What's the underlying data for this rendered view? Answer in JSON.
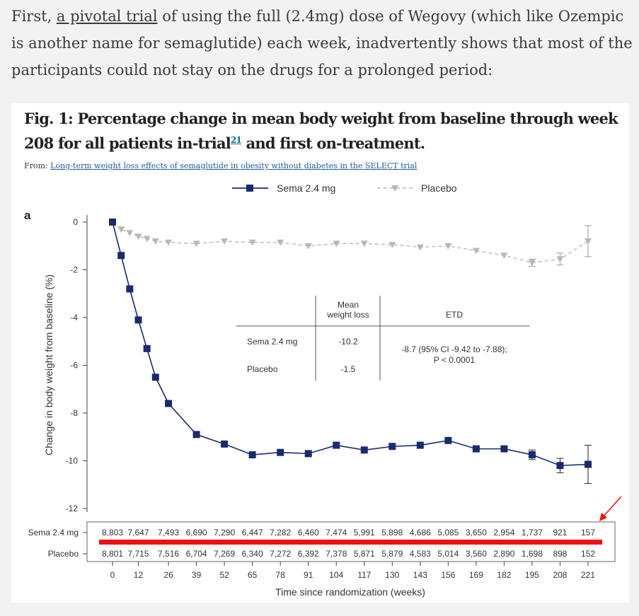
{
  "intro": {
    "prefix": "First, ",
    "link_text": "a pivotal trial",
    "suffix": " of using the full (2.4mg) dose of Wegovy (which like Ozempic is another name for semaglutide) each week, inadvertently shows that most of the participants could not stay on the drugs for a prolonged period:"
  },
  "figure": {
    "title_part1": "Fig. 1: Percentage change in mean body weight from baseline through week 208 for all patients in-trial",
    "ref_number": "21",
    "title_part2": " and first on-treatment.",
    "from_label": "From: ",
    "from_link": "Long-term weight loss effects of semaglutide in obesity without diabetes in the SELECT trial",
    "panel_label": "a"
  },
  "chart_data": {
    "type": "line",
    "ylabel": "Change in body weight from baseline (%)",
    "xlabel": "Time since randomization (weeks)",
    "ylim": [
      -12,
      0
    ],
    "yticks": [
      0,
      -2,
      -4,
      -6,
      -8,
      -10,
      -12
    ],
    "x": [
      0,
      4,
      8,
      12,
      16,
      20,
      26,
      39,
      52,
      65,
      78,
      91,
      104,
      117,
      130,
      143,
      156,
      169,
      182,
      195,
      208,
      221
    ],
    "xticks": [
      0,
      12,
      26,
      39,
      52,
      65,
      78,
      91,
      104,
      117,
      130,
      143,
      156,
      169,
      182,
      195,
      208,
      221
    ],
    "legend_position": "top-center",
    "series": [
      {
        "name": "Sema 2.4 mg",
        "color": "#1a2a6c",
        "marker": "square",
        "values": [
          0,
          -1.4,
          -2.8,
          -4.1,
          -5.3,
          -6.5,
          -7.6,
          -8.9,
          -9.3,
          -9.75,
          -9.65,
          -9.7,
          -9.35,
          -9.55,
          -9.4,
          -9.35,
          -9.15,
          -9.5,
          -9.5,
          -9.75,
          -10.2,
          -10.15
        ],
        "error_bars": {
          "195": 0.2,
          "208": 0.3,
          "221": 0.8
        }
      },
      {
        "name": "Placebo",
        "color": "#b8b8b8",
        "marker": "triangle-down",
        "values": [
          0,
          -0.3,
          -0.45,
          -0.6,
          -0.7,
          -0.8,
          -0.85,
          -0.9,
          -0.8,
          -0.85,
          -0.85,
          -1.0,
          -0.9,
          -0.9,
          -0.95,
          -1.05,
          -1.0,
          -1.2,
          -1.4,
          -1.7,
          -1.55,
          -0.8
        ],
        "error_bars": {
          "195": 0.15,
          "208": 0.25,
          "221": 0.65
        }
      }
    ],
    "inset_table": {
      "headers": [
        "",
        "Mean\nweight loss",
        "ETD"
      ],
      "rows": [
        {
          "label": "Sema 2.4 mg",
          "value": "-10.2"
        },
        {
          "label": "Placebo",
          "value": "-1.5"
        }
      ],
      "etd_line1": "-8.7 (95% CI -9.42 to -7.88);",
      "etd_line2": "P < 0.0001"
    },
    "at_risk": {
      "columns": [
        0,
        12,
        26,
        39,
        52,
        65,
        78,
        91,
        104,
        117,
        130,
        143,
        156,
        169,
        182,
        195,
        208,
        221
      ],
      "rows": [
        {
          "label": "Sema 2.4 mg",
          "values": [
            "8,803",
            "7,647",
            "7,493",
            "6,690",
            "7,290",
            "6,447",
            "7,282",
            "6,460",
            "7,474",
            "5,991",
            "5,898",
            "4,686",
            "5,085",
            "3,650",
            "2,954",
            "1,737",
            "921",
            "157"
          ]
        },
        {
          "label": "Placebo",
          "values": [
            "8,801",
            "7,715",
            "7,516",
            "6,704",
            "7,269",
            "6,340",
            "7,272",
            "6,392",
            "7,378",
            "5,871",
            "5,879",
            "4,583",
            "5,014",
            "3,560",
            "2,890",
            "1,698",
            "898",
            "152"
          ]
        }
      ]
    },
    "annotation_colors": {
      "highlight": "#ee1111"
    }
  }
}
